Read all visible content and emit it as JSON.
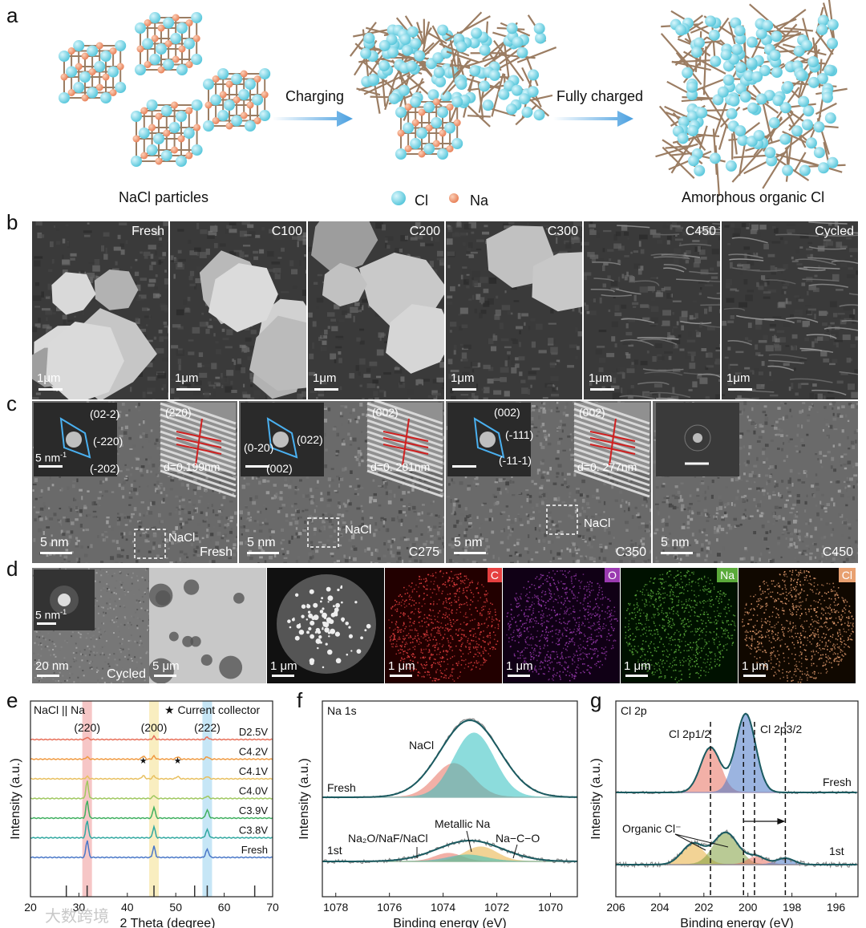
{
  "panels": {
    "a": "a",
    "b": "b",
    "c": "c",
    "d": "d",
    "e": "e",
    "f": "f",
    "g": "g"
  },
  "schematic": {
    "left_label": "NaCl particles",
    "arrow1": "Charging",
    "arrow2": "Fully charged",
    "legend_cl": "Cl",
    "legend_na": "Na",
    "right_label": "Amorphous organic Cl",
    "colors": {
      "cl": "#5bc8dc",
      "na": "#e8825a",
      "bond": "#9b7d63"
    }
  },
  "sem": [
    {
      "title": "Fresh",
      "scale": "1μm"
    },
    {
      "title": "C100",
      "scale": "1μm"
    },
    {
      "title": "C200",
      "scale": "1μm"
    },
    {
      "title": "C300",
      "scale": "1μm"
    },
    {
      "title": "C450",
      "scale": "1μm"
    },
    {
      "title": "Cycled",
      "scale": "1μm"
    }
  ],
  "tem": [
    {
      "title": "Fresh",
      "scale": "5 nm",
      "fft_scale": "5 nm",
      "fft_scale_sup": "-1",
      "spots": [
        "(02-2)",
        "(-220)",
        "(-202)"
      ],
      "lattice_hkl": "(220)",
      "d": "d=0.199nm",
      "region": "NaCl"
    },
    {
      "title": "C275",
      "scale": "5 nm",
      "spots": [
        "(0-20)",
        "(022)",
        "(002)"
      ],
      "lattice_hkl": "(002)",
      "d": "d=0. 281nm",
      "region": "NaCl"
    },
    {
      "title": "C350",
      "scale": "5 nm",
      "spots": [
        "(002)",
        "(-111)",
        "(-11-1)"
      ],
      "lattice_hkl": "(002)",
      "d": "d=0. 277nm",
      "region": "NaCl"
    },
    {
      "title": "C450",
      "scale": "5 nm"
    }
  ],
  "eds": {
    "cycled": {
      "title": "Cycled",
      "scale": "20 nm",
      "fft_scale": "5 nm",
      "fft_scale_sup": "-1"
    },
    "bright": {
      "scale": "5 μm"
    },
    "haadf": {
      "scale": "1 μm"
    },
    "maps": [
      {
        "element": "C",
        "scale": "1 μm",
        "color": "#e64040"
      },
      {
        "element": "O",
        "scale": "1 μm",
        "color": "#9a3ab0"
      },
      {
        "element": "Na",
        "scale": "1 μm",
        "color": "#5aaa3a"
      },
      {
        "element": "Cl",
        "scale": "1 μm",
        "color": "#e8a070"
      }
    ]
  },
  "chart_data": [
    {
      "type": "line",
      "panel": "e",
      "title": "NaCl || Na",
      "xlabel": "2 Theta (degree)",
      "ylabel": "Intensity (a.u.)",
      "xlim": [
        20,
        70
      ],
      "xticks": [
        20,
        30,
        40,
        50,
        60,
        70
      ],
      "legend": "★ Current collector",
      "peaks": [
        {
          "label": "(220)",
          "x": 31.7,
          "color": "#f4b8b8"
        },
        {
          "label": "(200)",
          "x": 45.5,
          "color": "#f8eab0"
        },
        {
          "label": "(222)",
          "x": 56.5,
          "color": "#b8e0f4"
        }
      ],
      "series": [
        {
          "name": "D2.5V",
          "color": "#e8705a"
        },
        {
          "name": "C4.2V",
          "color": "#f09a40"
        },
        {
          "name": "C4.1V",
          "color": "#e8c060"
        },
        {
          "name": "C4.0V",
          "color": "#a0c860"
        },
        {
          "name": "C3.9V",
          "color": "#40b060"
        },
        {
          "name": "C3.8V",
          "color": "#30a8a0"
        },
        {
          "name": "Fresh",
          "color": "#4a78c8"
        }
      ],
      "star_x": [
        43.3,
        50.4
      ],
      "ref_lines_x": [
        27.4,
        31.7,
        45.5,
        53.9,
        56.5,
        66.3
      ]
    },
    {
      "type": "line",
      "panel": "f",
      "title": "Na 1s",
      "xlabel": "Binding energy (eV)",
      "ylabel": "Intensity (a.u.)",
      "xlim": [
        1078.5,
        1069
      ],
      "xticks": [
        1078,
        1076,
        1074,
        1072,
        1070
      ],
      "curve_labels": [
        "Fresh",
        "1st"
      ],
      "annotations": [
        "NaCl",
        "Metallic Na",
        "Na₂O/NaF/NaCl",
        "Na−C−O"
      ]
    },
    {
      "type": "line",
      "panel": "g",
      "title": "Cl 2p",
      "xlabel": "Binding energy (eV)",
      "ylabel": "Intensity (a.u.)",
      "xlim": [
        206,
        195
      ],
      "xticks": [
        206,
        204,
        202,
        200,
        198,
        196
      ],
      "curve_labels": [
        "Fresh",
        "1st"
      ],
      "annotations": [
        "Cl 2p1/2",
        "Cl 2p3/2",
        "Organic Cl⁻"
      ],
      "dashed_x": [
        201.7,
        200.2,
        199.7,
        198.3
      ]
    }
  ],
  "watermark": "大数跨境"
}
